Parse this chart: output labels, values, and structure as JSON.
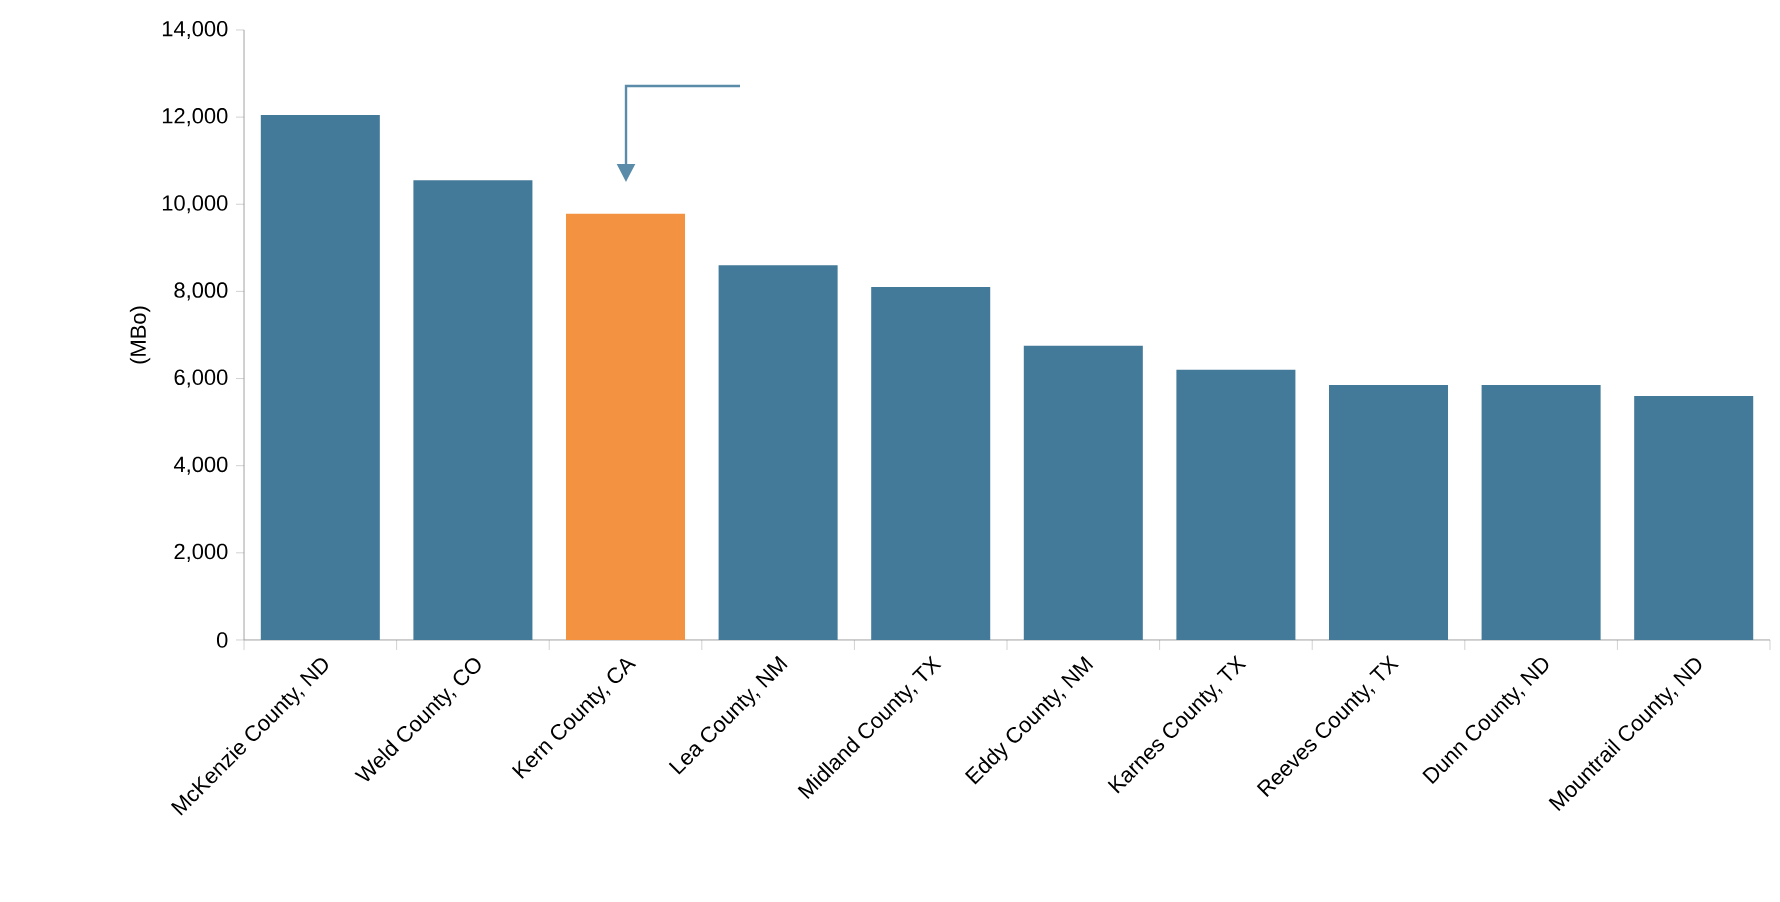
{
  "chart_data": {
    "type": "bar",
    "ylabel": "(MBo)",
    "categories": [
      "McKenzie County, ND",
      "Weld County, CO",
      "Kern County, CA",
      "Lea County, NM",
      "Midland County, TX",
      "Eddy County, NM",
      "Karnes County, TX",
      "Reeves County, TX",
      "Dunn County, ND",
      "Mountrail County, ND"
    ],
    "values": [
      12050,
      10550,
      9780,
      8600,
      8100,
      6750,
      6200,
      5850,
      5850,
      5600
    ],
    "colors": [
      "#437a99",
      "#437a99",
      "#f39241",
      "#437a99",
      "#437a99",
      "#437a99",
      "#437a99",
      "#437a99",
      "#437a99",
      "#437a99"
    ],
    "ylim": [
      0,
      14000
    ],
    "yticks": [
      0,
      {
        "value": 2000,
        "label": "2,000"
      },
      {
        "value": 4000,
        "label": "4,000"
      },
      {
        "value": 6000,
        "label": "6,000"
      },
      {
        "value": 8000,
        "label": "8,000"
      },
      {
        "value": 10000,
        "label": "10,000"
      },
      {
        "value": 12000,
        "label": "12,000"
      },
      {
        "value": 14000,
        "label": "14,000"
      }
    ],
    "grid": false
  }
}
